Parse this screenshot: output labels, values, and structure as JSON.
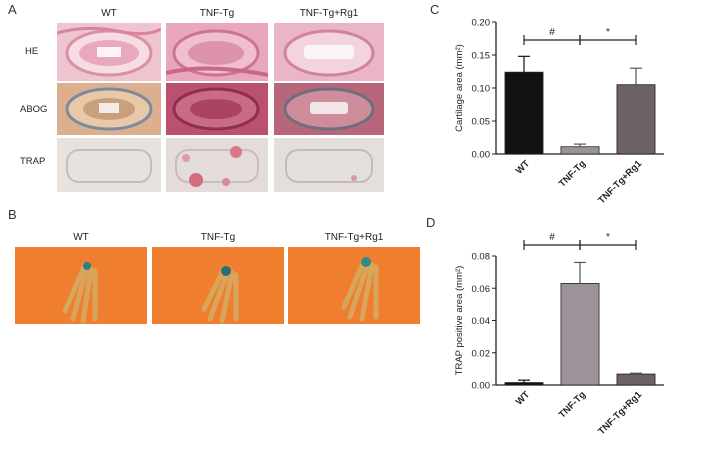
{
  "panel_a": {
    "letter": "A",
    "columns": [
      "WT",
      "TNF-Tg",
      "TNF-Tg+Rg1"
    ],
    "rows": [
      "HE",
      "ABOG",
      "TRAP"
    ]
  },
  "panel_b": {
    "letter": "B",
    "columns": [
      "WT",
      "TNF-Tg",
      "TNF-Tg+Rg1"
    ]
  },
  "panel_c": {
    "letter": "C"
  },
  "panel_d": {
    "letter": "D"
  },
  "colors": {
    "wt": "#111111",
    "tnf": "#9b9399",
    "rg1": "#6b6167",
    "he_bg": "#eec4cf",
    "abog_bg": "#dcb08e",
    "trap_bg": "#e8e2df",
    "microct_bg": "#ef7f2f",
    "bone": "#d9a55b"
  },
  "chart_data": [
    {
      "type": "bar",
      "categories": [
        "WT",
        "TNF-Tg",
        "TNF-Tg+Rg1"
      ],
      "values": [
        0.124,
        0.011,
        0.105
      ],
      "errors": [
        0.024,
        0.004,
        0.025
      ],
      "ylabel": "Cartilage area (mm²)",
      "ylim": [
        0,
        0.2
      ],
      "yticks": [
        "0.00",
        "0.05",
        "0.10",
        "0.15",
        "0.20"
      ],
      "grid": false,
      "annotations": [
        {
          "label": "#",
          "from": 0,
          "to": 1
        },
        {
          "label": "*",
          "from": 1,
          "to": 2
        }
      ]
    },
    {
      "type": "bar",
      "categories": [
        "WT",
        "TNF-Tg",
        "TNF-Tg+Rg1"
      ],
      "values": [
        0.0015,
        0.063,
        0.0068
      ],
      "errors": [
        0.0015,
        0.013,
        0.0005
      ],
      "ylabel": "TRAP positive area (mm²)",
      "ylim": [
        0,
        0.08
      ],
      "yticks": [
        "0.00",
        "0.02",
        "0.04",
        "0.06",
        "0.08"
      ],
      "grid": false,
      "annotations": [
        {
          "label": "#",
          "from": 0,
          "to": 1
        },
        {
          "label": "*",
          "from": 1,
          "to": 2
        }
      ]
    }
  ]
}
